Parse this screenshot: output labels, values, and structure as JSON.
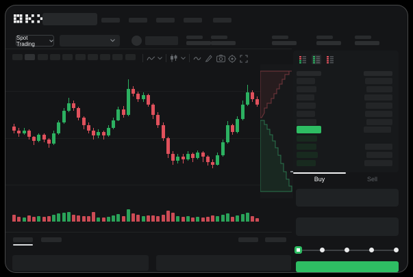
{
  "app": {
    "brand": "OKX"
  },
  "header": {
    "nav_item_count": 5,
    "stat_group_count": 5,
    "market_selector_label": "Spot Trading"
  },
  "toolbar": {
    "timeframe_count": 10,
    "icons": [
      "indicators-icon",
      "chevron-down-icon",
      "candle-style-icon",
      "chevron-down-icon",
      "line-tool-icon",
      "draw-pencil-icon",
      "camera-icon",
      "settings-gear-icon",
      "fullscreen-icon"
    ]
  },
  "orderbook": {
    "view_modes": [
      "book-combined",
      "book-bids",
      "book-asks"
    ],
    "active_view": "book-bids",
    "asks": [
      {
        "l": 27,
        "r": 40
      },
      {
        "l": 29,
        "r": 38
      },
      {
        "l": 26,
        "r": 41
      },
      {
        "l": 28,
        "r": 39
      },
      {
        "l": 27,
        "r": 40
      },
      {
        "l": 29,
        "r": 38
      }
    ],
    "price_row": {
      "left_w": 36,
      "right_w": 40
    },
    "bids": [
      {
        "l": 30,
        "r": 0
      },
      {
        "l": 29,
        "r": 40
      },
      {
        "l": 31,
        "r": 38
      },
      {
        "l": 28,
        "r": 41
      }
    ]
  },
  "trade_panel": {
    "tabs": {
      "buy": "Buy",
      "sell": "Sell"
    },
    "slider_stops": 5,
    "slider_value_index": 0
  },
  "colors": {
    "up": "#2cb161",
    "down": "#e0515c",
    "accent": "#2ebd63",
    "bar_placeholder": "#232527",
    "bid_tint": "#182a1f"
  },
  "chart_data": {
    "type": "candlestick",
    "title": "",
    "xlabel": "time (no labels visible)",
    "ylabel": "price (no labels visible)",
    "price_scale": "normalized 0-100 (chart shows no numeric axis)",
    "grid": "horizontal faint lines",
    "candles": [
      [
        57,
        54,
        59,
        52
      ],
      [
        54,
        52,
        56,
        49
      ],
      [
        52,
        54,
        56,
        51
      ],
      [
        54,
        49,
        55,
        47
      ],
      [
        49,
        46,
        50,
        43
      ],
      [
        46,
        51,
        52,
        45
      ],
      [
        51,
        47,
        52,
        45
      ],
      [
        47,
        44,
        48,
        41
      ],
      [
        44,
        52,
        54,
        43
      ],
      [
        52,
        60,
        62,
        51
      ],
      [
        60,
        69,
        71,
        59
      ],
      [
        69,
        75,
        79,
        68
      ],
      [
        75,
        71,
        77,
        69
      ],
      [
        71,
        64,
        72,
        62
      ],
      [
        64,
        58,
        65,
        55
      ],
      [
        58,
        54,
        60,
        52
      ],
      [
        54,
        50,
        56,
        47
      ],
      [
        50,
        53,
        55,
        48
      ],
      [
        53,
        50,
        54,
        47
      ],
      [
        50,
        56,
        58,
        49
      ],
      [
        56,
        62,
        64,
        55
      ],
      [
        62,
        70,
        72,
        61
      ],
      [
        70,
        66,
        73,
        64
      ],
      [
        66,
        86,
        93,
        65
      ],
      [
        86,
        82,
        88,
        80
      ],
      [
        82,
        78,
        84,
        76
      ],
      [
        78,
        81,
        83,
        76
      ],
      [
        81,
        74,
        82,
        72
      ],
      [
        74,
        66,
        75,
        63
      ],
      [
        66,
        58,
        68,
        56
      ],
      [
        58,
        48,
        60,
        46
      ],
      [
        48,
        36,
        49,
        33
      ],
      [
        36,
        31,
        38,
        28
      ],
      [
        31,
        34,
        36,
        29
      ],
      [
        34,
        32,
        36,
        29
      ],
      [
        32,
        36,
        38,
        31
      ],
      [
        36,
        33,
        37,
        30
      ],
      [
        33,
        37,
        39,
        32
      ],
      [
        37,
        34,
        38,
        30
      ],
      [
        34,
        30,
        35,
        27
      ],
      [
        30,
        28,
        32,
        25
      ],
      [
        28,
        35,
        37,
        27
      ],
      [
        35,
        45,
        47,
        34
      ],
      [
        45,
        58,
        61,
        44
      ],
      [
        58,
        53,
        59,
        51
      ],
      [
        53,
        63,
        65,
        52
      ],
      [
        63,
        74,
        77,
        62
      ],
      [
        74,
        83,
        89,
        73
      ],
      [
        83,
        78,
        85,
        76
      ],
      [
        78,
        74,
        80,
        72
      ]
    ],
    "candle_format": "[open, close, high, low]",
    "volumes": [
      48,
      36,
      30,
      44,
      34,
      42,
      33,
      40,
      52,
      58,
      66,
      72,
      50,
      46,
      40,
      38,
      70,
      30,
      28,
      36,
      46,
      56,
      40,
      88,
      62,
      48,
      38,
      44,
      46,
      40,
      52,
      78,
      66,
      42,
      36,
      40,
      30,
      36,
      28,
      34,
      46,
      42,
      52,
      62,
      36,
      46,
      56,
      66,
      40,
      24
    ],
    "depth": {
      "asks_points": [
        [
          2,
          78
        ],
        [
          6,
          71
        ],
        [
          6,
          64
        ],
        [
          10,
          64
        ],
        [
          10,
          57
        ],
        [
          16,
          57
        ],
        [
          16,
          50
        ],
        [
          20,
          50
        ],
        [
          20,
          43
        ],
        [
          24,
          43
        ],
        [
          24,
          36
        ],
        [
          28,
          36
        ],
        [
          28,
          29
        ],
        [
          32,
          29
        ],
        [
          32,
          22
        ],
        [
          36,
          22
        ],
        [
          36,
          15
        ],
        [
          42,
          15
        ],
        [
          42,
          10
        ],
        [
          46,
          10
        ]
      ],
      "bids_points": [
        [
          2,
          82
        ],
        [
          6,
          82
        ],
        [
          6,
          88
        ],
        [
          10,
          88
        ],
        [
          10,
          95
        ],
        [
          14,
          95
        ],
        [
          14,
          103
        ],
        [
          18,
          103
        ],
        [
          18,
          112
        ],
        [
          22,
          112
        ],
        [
          22,
          122
        ],
        [
          26,
          122
        ],
        [
          26,
          133
        ],
        [
          30,
          133
        ],
        [
          30,
          145
        ],
        [
          34,
          145
        ],
        [
          34,
          157
        ],
        [
          38,
          157
        ],
        [
          38,
          168
        ],
        [
          42,
          168
        ],
        [
          42,
          178
        ],
        [
          46,
          178
        ],
        [
          46,
          186
        ]
      ]
    }
  }
}
